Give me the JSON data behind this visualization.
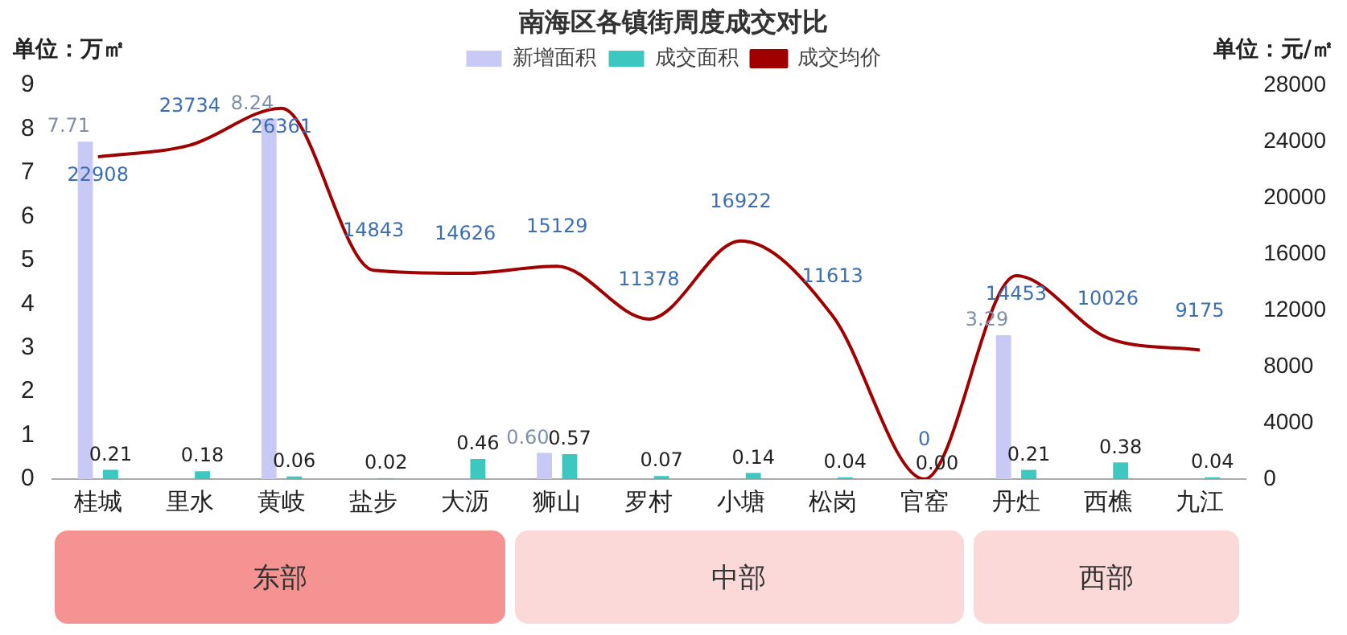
{
  "chart_data": {
    "type": "bar",
    "title": "南海区各镇街周度成交对比",
    "ylabel": "单位：万㎡",
    "y2label": "单位：元/㎡",
    "categories": [
      "桂城",
      "里水",
      "黄岐",
      "盐步",
      "大沥",
      "狮山",
      "罗村",
      "小塘",
      "松岗",
      "官窑",
      "丹灶",
      "西樵",
      "九江"
    ],
    "series": [
      {
        "name": "新增面积",
        "color": "#c9c9f5",
        "values": [
          7.71,
          null,
          8.24,
          null,
          null,
          0.6,
          null,
          null,
          null,
          null,
          3.29,
          null,
          null
        ],
        "value_labels": [
          "7.71",
          null,
          "8.24",
          null,
          null,
          "0.60",
          null,
          null,
          null,
          null,
          "3.29",
          null,
          null
        ]
      },
      {
        "name": "成交面积",
        "color": "#3cc8c0",
        "values": [
          0.21,
          0.18,
          0.06,
          0.02,
          0.46,
          0.57,
          0.07,
          0.14,
          0.04,
          0.0,
          0.21,
          0.38,
          0.04
        ],
        "value_labels": [
          "0.21",
          "0.18",
          "0.06",
          "0.02",
          "0.46",
          "0.57",
          "0.07",
          "0.14",
          "0.04",
          "0.00",
          "0.21",
          "0.38",
          "0.04"
        ]
      },
      {
        "name": "成交均价",
        "type": "line",
        "axis": "y2",
        "color": "#a00000",
        "values": [
          22908,
          23734,
          26361,
          14843,
          14626,
          15129,
          11378,
          16922,
          11613,
          0,
          14453,
          10026,
          9175
        ]
      }
    ],
    "ylim": [
      0,
      9
    ],
    "yticks": [
      0,
      1,
      2,
      3,
      4,
      5,
      6,
      7,
      8,
      9
    ],
    "y2lim": [
      0,
      28000
    ],
    "y2ticks": [
      0,
      4000,
      8000,
      12000,
      16000,
      20000,
      24000,
      28000
    ],
    "grid": false,
    "legend": "top",
    "marker": "none",
    "data_labels": true,
    "annotations": [
      "东部",
      "中部",
      "西部"
    ]
  }
}
